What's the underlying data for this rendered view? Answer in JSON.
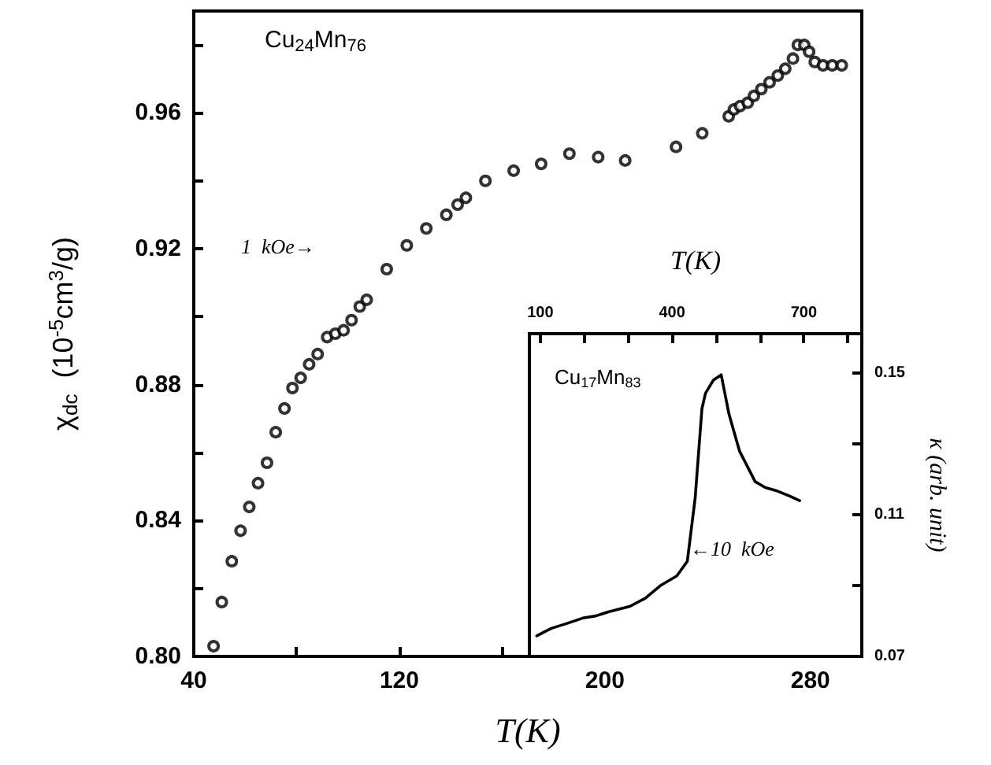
{
  "chart_data": [
    {
      "type": "scatter",
      "xlabel": "T(K)",
      "ylabel": "χ$_{dc}$  (10$^{-5}$cm$^{3}$/g)",
      "marker": "circle",
      "annotations": [
        "Cu$_{24}$Mn$_{76}$",
        "1  kOe→"
      ],
      "xlim": [
        40,
        300
      ],
      "xticks": [
        40,
        {
          "value": 80,
          "label": null
        },
        120,
        {
          "value": 160,
          "label": null
        },
        200,
        {
          "value": 240,
          "label": null
        },
        280
      ],
      "ylim": [
        0.8,
        0.99
      ],
      "yticks": [
        {
          "value": 0.8,
          "label": "0.80"
        },
        {
          "value": 0.82,
          "label": null
        },
        {
          "value": 0.84,
          "label": "0.84"
        },
        {
          "value": 0.86,
          "label": null
        },
        {
          "value": 0.88,
          "label": "0.88"
        },
        {
          "value": 0.9,
          "label": null
        },
        {
          "value": 0.92,
          "label": "0.92"
        },
        {
          "value": 0.94,
          "label": null
        },
        {
          "value": 0.96,
          "label": "0.96"
        },
        {
          "value": 0.98,
          "label": null
        }
      ],
      "series": [
        {
          "color": "#000000",
          "x": [
            47.7,
            50.9,
            54.8,
            58.2,
            61.6,
            65.0,
            68.5,
            71.9,
            75.3,
            78.4,
            81.6,
            84.9,
            88.2,
            91.9,
            95.1,
            98.3,
            101.4,
            104.6,
            107.3,
            115.1,
            122.9,
            130.5,
            138.3,
            142.7,
            145.9,
            153.5,
            164.5,
            175.2,
            186.2,
            197.4,
            207.9,
            227.7,
            237.9,
            248.2,
            250.2,
            252.6,
            255.6,
            258.0,
            260.9,
            264.1,
            267.3,
            270.2,
            273.2,
            275.1,
            277.6,
            279.5,
            281.7,
            284.9,
            288.5,
            292.2
          ],
          "values": [
            0.803,
            0.816,
            0.828,
            0.837,
            0.844,
            0.851,
            0.857,
            0.866,
            0.873,
            0.879,
            0.882,
            0.886,
            0.889,
            0.894,
            0.895,
            0.896,
            0.899,
            0.903,
            0.905,
            0.914,
            0.921,
            0.926,
            0.93,
            0.933,
            0.935,
            0.94,
            0.943,
            0.945,
            0.948,
            0.947,
            0.946,
            0.95,
            0.954,
            0.959,
            0.961,
            0.962,
            0.963,
            0.965,
            0.967,
            0.969,
            0.971,
            0.973,
            0.976,
            0.98,
            0.98,
            0.978,
            0.975,
            0.974,
            0.974,
            0.974
          ]
        }
      ]
    },
    {
      "type": "line",
      "xlabel": "T(K)",
      "ylabel": "κ (arb. unit)",
      "marker": "none",
      "annotations": [
        "Cu$_{17}$Mn$_{83}$",
        "←10  kOe"
      ],
      "xlim": [
        75,
        832
      ],
      "xticks": [
        100,
        {
          "value": 200,
          "label": null
        },
        {
          "value": 300,
          "label": null
        },
        400,
        {
          "value": 500,
          "label": null
        },
        {
          "value": 600,
          "label": null
        },
        700,
        {
          "value": 800,
          "label": null
        }
      ],
      "ylim": [
        0.07,
        0.161
      ],
      "yticks": [
        {
          "value": 0.07,
          "label": "0.07"
        },
        {
          "value": 0.09,
          "label": null
        },
        {
          "value": 0.11,
          "label": "0.11"
        },
        {
          "value": 0.13,
          "label": null
        },
        {
          "value": 0.15,
          "label": "0.15"
        }
      ],
      "series": [
        {
          "color": "#000000",
          "x": [
            91.8,
            125,
            160.7,
            196.4,
            226,
            256,
            303.6,
            339,
            375,
            410.7,
            434.6,
            452.5,
            467.9,
            476,
            494,
            511.8,
            529.6,
            553.6,
            589,
            612.3,
            636,
            666,
            690.4
          ],
          "values": [
            0.0758,
            0.0779,
            0.0793,
            0.0808,
            0.0814,
            0.0826,
            0.0841,
            0.0864,
            0.0901,
            0.0927,
            0.0968,
            0.1146,
            0.1398,
            0.1442,
            0.1479,
            0.1494,
            0.1383,
            0.1279,
            0.1193,
            0.1176,
            0.1168,
            0.1153,
            0.1139
          ]
        }
      ]
    }
  ]
}
